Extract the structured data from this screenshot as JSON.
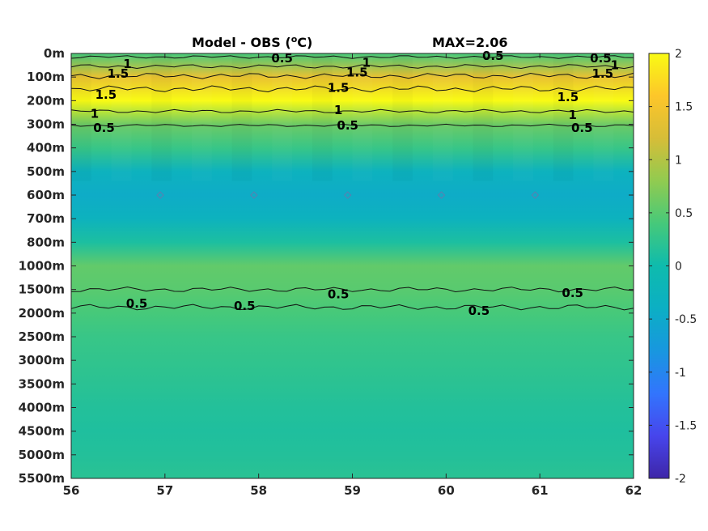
{
  "chart_data": {
    "type": "heatmap",
    "title": "Model - OBS (",
    "title_unit": "C)",
    "title_degree": "o",
    "max_label": "MAX=2.06",
    "x_ticks": [
      "56",
      "57",
      "58",
      "59",
      "60",
      "61",
      "62"
    ],
    "x_range": [
      56,
      62
    ],
    "y_ticks": [
      "0m",
      "100m",
      "200m",
      "300m",
      "400m",
      "500m",
      "600m",
      "700m",
      "800m",
      "1000m",
      "1500m",
      "2000m",
      "2500m",
      "3000m",
      "3500m",
      "4000m",
      "4500m",
      "5000m",
      "5500m"
    ],
    "colorbar_ticks": [
      "2",
      "1.5",
      "1",
      "0.5",
      "0",
      "-0.5",
      "-1",
      "-1.5",
      "-2"
    ],
    "colorbar_range": [
      -2,
      2
    ],
    "depth_profile": [
      0.4,
      1.4,
      2.0,
      0.6,
      0.3,
      -0.3,
      -0.45,
      -0.3,
      0.1,
      0.55,
      0.5,
      0.4,
      0.3,
      0.25,
      0.2,
      0.15,
      0.12,
      0.15,
      0.2
    ],
    "contour_labels": [
      {
        "text": "1",
        "x": 56.6,
        "y": 0.45
      },
      {
        "text": "1.5",
        "x": 56.5,
        "y": 0.85
      },
      {
        "text": "1.5",
        "x": 56.37,
        "y": 1.75
      },
      {
        "text": "1",
        "x": 56.25,
        "y": 2.55
      },
      {
        "text": "0.5",
        "x": 56.35,
        "y": 3.15
      },
      {
        "text": "0.5",
        "x": 58.25,
        "y": 0.2
      },
      {
        "text": "1",
        "x": 59.15,
        "y": 0.4
      },
      {
        "text": "1.5",
        "x": 59.05,
        "y": 0.8
      },
      {
        "text": "1.5",
        "x": 58.85,
        "y": 1.45
      },
      {
        "text": "1",
        "x": 58.85,
        "y": 2.4
      },
      {
        "text": "0.5",
        "x": 58.95,
        "y": 3.05
      },
      {
        "text": "0.5",
        "x": 60.5,
        "y": 0.1
      },
      {
        "text": "0.5",
        "x": 61.65,
        "y": 0.2
      },
      {
        "text": "1",
        "x": 61.8,
        "y": 0.5
      },
      {
        "text": "1.5",
        "x": 61.67,
        "y": 0.85
      },
      {
        "text": "1.5",
        "x": 61.3,
        "y": 1.85
      },
      {
        "text": "1",
        "x": 61.35,
        "y": 2.6
      },
      {
        "text": "0.5",
        "x": 61.45,
        "y": 3.15
      },
      {
        "text": "0.5",
        "x": 58.85,
        "y": 10.2
      },
      {
        "text": "0.5",
        "x": 61.35,
        "y": 10.15
      },
      {
        "text": "0.5",
        "x": 56.7,
        "y": 10.6
      },
      {
        "text": "0.5",
        "x": 57.85,
        "y": 10.7
      },
      {
        "text": "0.5",
        "x": 60.35,
        "y": 10.9
      }
    ],
    "grid": "off"
  }
}
